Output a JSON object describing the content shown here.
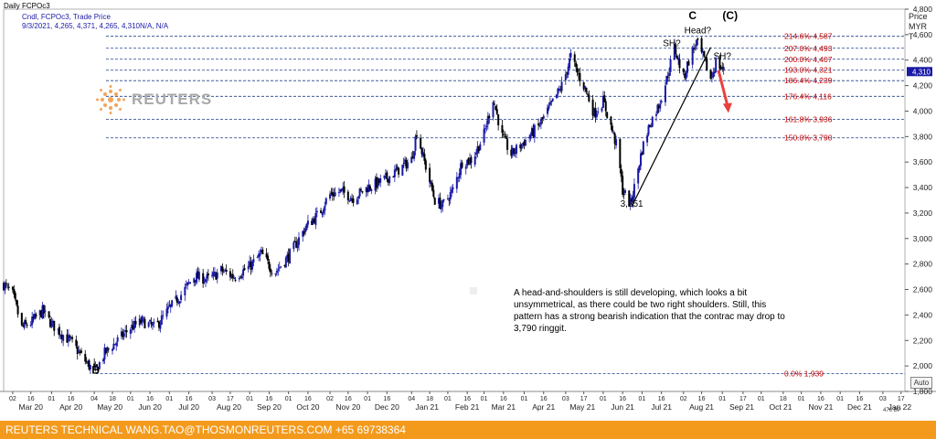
{
  "header": {
    "title": "Daily FCPOc3",
    "legend_line1": "Cndl, FCPOc3, Trade Price",
    "legend_line2": "9/3/2021, 4,265, 4,371, 4,265, 4,310N/A, N/A"
  },
  "logo": {
    "text": "REUTERS"
  },
  "footer": {
    "text": "REUTERS TECHNICAL  WANG.TAO@THOSMONREUTERS.COM  +65 69738364"
  },
  "controls": {
    "auto_label": "Auto",
    "scroll_label": "476 BP"
  },
  "annotation": {
    "text": "A head-and-shoulders is still developing, which looks a bit unsymmetrical, as there could be two right shoulders. Still, this pattern has a strong bearish indication that the contrac may drop to 3,790 ringgit."
  },
  "colors": {
    "up": "#1a1aa6",
    "down": "#000000",
    "fib_line": "#1f3d8c",
    "fib_label": "#c00000",
    "footer": "#f39a1c",
    "arrow": "#e84040"
  },
  "chart_data": {
    "type": "candlestick",
    "title": "Daily FCPOc3",
    "ylabel": "Price MYR T",
    "ylim": [
      1800,
      4800
    ],
    "xlim": [
      "2020-02-24",
      "2022-01-20"
    ],
    "y_ticks": [
      1800,
      2000,
      2200,
      2400,
      2600,
      2800,
      3000,
      3200,
      3400,
      3600,
      3800,
      4000,
      4200,
      4400,
      4600,
      4800
    ],
    "y_tick_labels": [
      "1,800",
      "2,000",
      "2,200",
      "2,400",
      "2,600",
      "2,800",
      "3,000",
      "3,200",
      "3,400",
      "3,600",
      "3,800",
      "4,000",
      "4,200",
      "4,400",
      "4,600",
      "4,800"
    ],
    "current_price_label": "4,310",
    "x_day_ticks": [
      {
        "d": "2020-03-02",
        "l": "02"
      },
      {
        "d": "2020-03-16",
        "l": "16"
      },
      {
        "d": "2020-04-01",
        "l": "01"
      },
      {
        "d": "2020-04-16",
        "l": "16"
      },
      {
        "d": "2020-05-04",
        "l": "04"
      },
      {
        "d": "2020-05-18",
        "l": "18"
      },
      {
        "d": "2020-06-01",
        "l": "01"
      },
      {
        "d": "2020-06-16",
        "l": "16"
      },
      {
        "d": "2020-07-01",
        "l": "01"
      },
      {
        "d": "2020-07-16",
        "l": "16"
      },
      {
        "d": "2020-08-03",
        "l": "03"
      },
      {
        "d": "2020-08-17",
        "l": "17"
      },
      {
        "d": "2020-09-01",
        "l": "01"
      },
      {
        "d": "2020-09-16",
        "l": "16"
      },
      {
        "d": "2020-10-01",
        "l": "01"
      },
      {
        "d": "2020-10-16",
        "l": "16"
      },
      {
        "d": "2020-11-02",
        "l": "02"
      },
      {
        "d": "2020-11-16",
        "l": "16"
      },
      {
        "d": "2020-12-01",
        "l": "01"
      },
      {
        "d": "2020-12-16",
        "l": "16"
      },
      {
        "d": "2021-01-04",
        "l": "04"
      },
      {
        "d": "2021-01-18",
        "l": "18"
      },
      {
        "d": "2021-02-01",
        "l": "01"
      },
      {
        "d": "2021-02-16",
        "l": "16"
      },
      {
        "d": "2021-03-01",
        "l": "01"
      },
      {
        "d": "2021-03-16",
        "l": "16"
      },
      {
        "d": "2021-04-01",
        "l": "01"
      },
      {
        "d": "2021-04-16",
        "l": "16"
      },
      {
        "d": "2021-05-03",
        "l": "03"
      },
      {
        "d": "2021-05-17",
        "l": "17"
      },
      {
        "d": "2021-06-01",
        "l": "01"
      },
      {
        "d": "2021-06-16",
        "l": "16"
      },
      {
        "d": "2021-07-01",
        "l": "01"
      },
      {
        "d": "2021-07-16",
        "l": "16"
      },
      {
        "d": "2021-08-02",
        "l": "02"
      },
      {
        "d": "2021-08-16",
        "l": "16"
      },
      {
        "d": "2021-09-01",
        "l": "01"
      },
      {
        "d": "2021-09-17",
        "l": "17"
      },
      {
        "d": "2021-10-01",
        "l": "01"
      },
      {
        "d": "2021-10-18",
        "l": "18"
      },
      {
        "d": "2021-11-01",
        "l": "01"
      },
      {
        "d": "2021-11-16",
        "l": "16"
      },
      {
        "d": "2021-12-01",
        "l": "01"
      },
      {
        "d": "2021-12-16",
        "l": "16"
      },
      {
        "d": "2022-01-03",
        "l": "03"
      },
      {
        "d": "2022-01-17",
        "l": "17"
      }
    ],
    "x_month_labels": [
      {
        "d": "2020-03-16",
        "l": "Mar 20"
      },
      {
        "d": "2020-04-16",
        "l": "Apr 20"
      },
      {
        "d": "2020-05-16",
        "l": "May 20"
      },
      {
        "d": "2020-06-16",
        "l": "Jun 20"
      },
      {
        "d": "2020-07-16",
        "l": "Jul 20"
      },
      {
        "d": "2020-08-16",
        "l": "Aug 20"
      },
      {
        "d": "2020-09-16",
        "l": "Sep 20"
      },
      {
        "d": "2020-10-16",
        "l": "Oct 20"
      },
      {
        "d": "2020-11-16",
        "l": "Nov 20"
      },
      {
        "d": "2020-12-16",
        "l": "Dec 20"
      },
      {
        "d": "2021-01-16",
        "l": "Jan 21"
      },
      {
        "d": "2021-02-16",
        "l": "Feb 21"
      },
      {
        "d": "2021-03-16",
        "l": "Mar 21"
      },
      {
        "d": "2021-04-16",
        "l": "Apr 21"
      },
      {
        "d": "2021-05-16",
        "l": "May 21"
      },
      {
        "d": "2021-06-16",
        "l": "Jun 21"
      },
      {
        "d": "2021-07-16",
        "l": "Jul 21"
      },
      {
        "d": "2021-08-16",
        "l": "Aug 21"
      },
      {
        "d": "2021-09-16",
        "l": "Sep 21"
      },
      {
        "d": "2021-10-16",
        "l": "Oct 21"
      },
      {
        "d": "2021-11-16",
        "l": "Nov 21"
      },
      {
        "d": "2021-12-16",
        "l": "Dec 21"
      },
      {
        "d": "2022-01-16",
        "l": "Jan 22"
      }
    ],
    "price_path": [
      [
        "2020-02-24",
        2640
      ],
      [
        "2020-03-02",
        2560
      ],
      [
        "2020-03-09",
        2300
      ],
      [
        "2020-03-16",
        2340
      ],
      [
        "2020-03-25",
        2430
      ],
      [
        "2020-04-01",
        2330
      ],
      [
        "2020-04-08",
        2260
      ],
      [
        "2020-04-16",
        2190
      ],
      [
        "2020-04-24",
        2080
      ],
      [
        "2020-04-30",
        2000
      ],
      [
        "2020-05-05",
        1960
      ],
      [
        "2020-05-12",
        2100
      ],
      [
        "2020-05-20",
        2180
      ],
      [
        "2020-06-01",
        2300
      ],
      [
        "2020-06-10",
        2350
      ],
      [
        "2020-06-20",
        2300
      ],
      [
        "2020-07-01",
        2450
      ],
      [
        "2020-07-10",
        2560
      ],
      [
        "2020-07-20",
        2700
      ],
      [
        "2020-08-01",
        2680
      ],
      [
        "2020-08-10",
        2750
      ],
      [
        "2020-08-20",
        2700
      ],
      [
        "2020-09-01",
        2780
      ],
      [
        "2020-09-10",
        2880
      ],
      [
        "2020-09-20",
        2730
      ],
      [
        "2020-10-01",
        2860
      ],
      [
        "2020-10-15",
        3100
      ],
      [
        "2020-10-25",
        3200
      ],
      [
        "2020-11-01",
        3340
      ],
      [
        "2020-11-10",
        3370
      ],
      [
        "2020-11-20",
        3320
      ],
      [
        "2020-12-01",
        3400
      ],
      [
        "2020-12-10",
        3440
      ],
      [
        "2020-12-20",
        3500
      ],
      [
        "2021-01-04",
        3620
      ],
      [
        "2021-01-08",
        3840
      ],
      [
        "2021-01-14",
        3600
      ],
      [
        "2021-01-22",
        3300
      ],
      [
        "2021-01-28",
        3260
      ],
      [
        "2021-02-05",
        3380
      ],
      [
        "2021-02-12",
        3600
      ],
      [
        "2021-02-20",
        3620
      ],
      [
        "2021-03-01",
        3820
      ],
      [
        "2021-03-08",
        4100
      ],
      [
        "2021-03-15",
        3800
      ],
      [
        "2021-03-22",
        3660
      ],
      [
        "2021-04-01",
        3760
      ],
      [
        "2021-04-12",
        3880
      ],
      [
        "2021-04-22",
        4050
      ],
      [
        "2021-05-01",
        4220
      ],
      [
        "2021-05-07",
        4430
      ],
      [
        "2021-05-12",
        4300
      ],
      [
        "2021-05-18",
        4180
      ],
      [
        "2021-05-25",
        3980
      ],
      [
        "2021-06-01",
        4080
      ],
      [
        "2021-06-07",
        3880
      ],
      [
        "2021-06-12",
        3700
      ],
      [
        "2021-06-16",
        3380
      ],
      [
        "2021-06-22",
        3270
      ],
      [
        "2021-06-25",
        3400
      ],
      [
        "2021-07-01",
        3700
      ],
      [
        "2021-07-07",
        3900
      ],
      [
        "2021-07-14",
        4050
      ],
      [
        "2021-07-20",
        4250
      ],
      [
        "2021-07-26",
        4500
      ],
      [
        "2021-08-02",
        4260
      ],
      [
        "2021-08-07",
        4430
      ],
      [
        "2021-08-12",
        4540
      ],
      [
        "2021-08-18",
        4400
      ],
      [
        "2021-08-23",
        4250
      ],
      [
        "2021-08-27",
        4380
      ],
      [
        "2021-09-03",
        4310
      ]
    ],
    "fib_levels": [
      {
        "pct": "214.6%",
        "value": 4587,
        "label": "214.6% 4,587"
      },
      {
        "pct": "207.0%",
        "value": 4493,
        "label": "207.0% 4,493"
      },
      {
        "pct": "200.0%",
        "value": 4407,
        "label": "200.0% 4,407"
      },
      {
        "pct": "193.0%",
        "value": 4321,
        "label": "193.0% 4,321"
      },
      {
        "pct": "186.4%",
        "value": 4239,
        "label": "186.4% 4,239"
      },
      {
        "pct": "176.4%",
        "value": 4116,
        "label": "176.4% 4,116"
      },
      {
        "pct": "161.8%",
        "value": 3936,
        "label": "161.8% 3,936"
      },
      {
        "pct": "150.0%",
        "value": 3790,
        "label": "150.0% 3,790"
      },
      {
        "pct": "0.0%",
        "value": 1939,
        "label": "0.0% 1,939"
      }
    ],
    "annotations": [
      {
        "text": "B",
        "d": "2020-05-05",
        "value": 1939
      },
      {
        "text": "3,251",
        "d": "2021-06-23",
        "value": 3251
      },
      {
        "text": "C",
        "d": "2021-08-09",
        "value": 4720
      },
      {
        "text": "(C)",
        "d": "2021-09-07",
        "value": 4720
      },
      {
        "text": "Head?",
        "d": "2021-08-13",
        "value": 4610
      },
      {
        "text": "SH?",
        "d": "2021-07-24",
        "value": 4510
      },
      {
        "text": "SH?",
        "d": "2021-09-01",
        "value": 4410
      }
    ],
    "trendline": {
      "from": [
        "2021-06-23",
        3251
      ],
      "to": [
        "2021-08-23",
        4500
      ]
    },
    "arrow": {
      "from": [
        "2021-08-29",
        4320
      ],
      "to": [
        "2021-09-05",
        4000
      ]
    },
    "grid": false,
    "legend_position": "top-left"
  }
}
